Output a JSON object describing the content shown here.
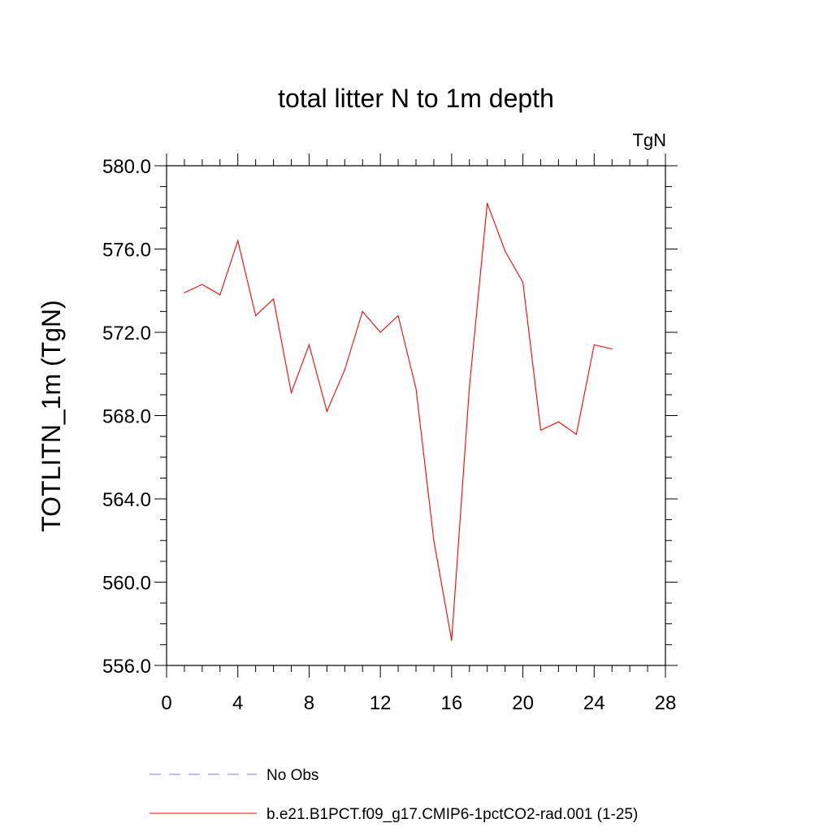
{
  "chart_data": {
    "type": "line",
    "title": "total litter N to 1m depth",
    "units_label": "TgN",
    "ylabel": "TOTLITN_1m  (TgN)",
    "xlabel": "",
    "xlim": [
      0,
      28
    ],
    "ylim": [
      556,
      580
    ],
    "x_ticks": [
      0,
      4,
      8,
      12,
      16,
      20,
      24,
      28
    ],
    "x_tick_labels": [
      "0",
      "4",
      "8",
      "12",
      "16",
      "20",
      "24",
      "28"
    ],
    "y_ticks": [
      556,
      560,
      564,
      568,
      572,
      576,
      580
    ],
    "y_tick_labels": [
      "556.0",
      "560.0",
      "564.0",
      "568.0",
      "572.0",
      "576.0",
      "580.0"
    ],
    "grid": false,
    "series": [
      {
        "name": "b.e21.B1PCT.f09_g17.CMIP6-1pctCO2-rad.001 (1-25)",
        "color": "#ff0000",
        "style": "solid",
        "x": [
          1,
          2,
          3,
          4,
          5,
          6,
          7,
          8,
          9,
          10,
          11,
          12,
          13,
          14,
          15,
          16,
          17,
          18,
          19,
          20,
          21,
          22,
          23,
          24,
          25
        ],
        "values": [
          573.9,
          574.3,
          573.8,
          576.4,
          572.8,
          573.6,
          569.1,
          571.4,
          568.2,
          570.2,
          573.0,
          572.0,
          572.8,
          569.3,
          562.0,
          557.2,
          569.4,
          578.2,
          575.9,
          574.4,
          567.3,
          567.7,
          567.1,
          571.4,
          571.2
        ]
      }
    ],
    "legend": {
      "position": "bottom",
      "items": [
        {
          "label": "No Obs",
          "color": "#7b7bd6",
          "style": "dashed"
        },
        {
          "label": "b.e21.B1PCT.f09_g17.CMIP6-1pctCO2-rad.001 (1-25)",
          "color": "#ff0000",
          "style": "solid"
        }
      ]
    }
  }
}
